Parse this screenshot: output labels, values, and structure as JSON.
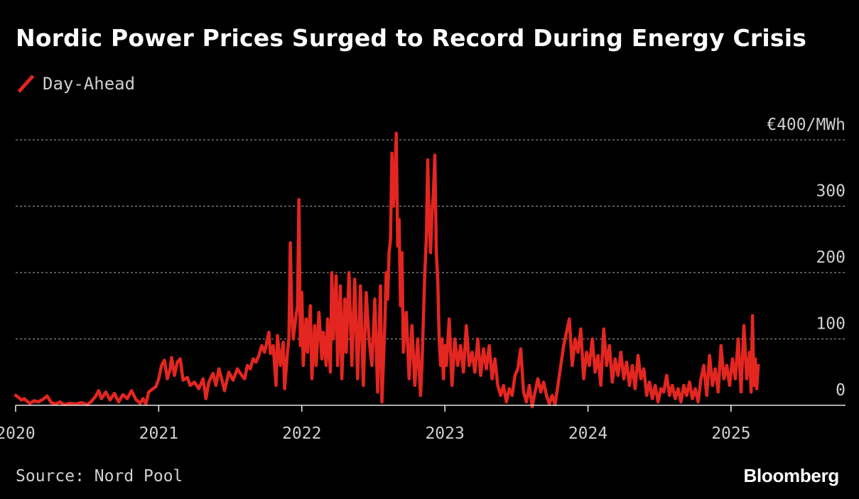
{
  "header": {
    "title": "Nordic Power Prices Surged to Record During Energy Crisis"
  },
  "legend": {
    "label": "Day-Ahead",
    "color": "#e32620"
  },
  "footer": {
    "source": "Source: Nord Pool",
    "brand": "Bloomberg"
  },
  "chart_data": {
    "type": "line",
    "title": "Nordic Power Prices Surged to Record During Energy Crisis",
    "xlabel": "",
    "ylabel": "€/MWh",
    "xlim": [
      2020.0,
      2025.8
    ],
    "ylim": [
      0,
      400
    ],
    "grid": true,
    "legend_position": "top-left",
    "y_ticks": [
      {
        "value": 0,
        "label": "0"
      },
      {
        "value": 100,
        "label": "100"
      },
      {
        "value": 200,
        "label": "200"
      },
      {
        "value": 300,
        "label": "300"
      },
      {
        "value": 400,
        "label": "€400/MWh"
      }
    ],
    "x_ticks": [
      {
        "value": 2020,
        "label": "2020"
      },
      {
        "value": 2021,
        "label": "2021"
      },
      {
        "value": 2022,
        "label": "2022"
      },
      {
        "value": 2023,
        "label": "2023"
      },
      {
        "value": 2024,
        "label": "2024"
      },
      {
        "value": 2025,
        "label": "2025"
      }
    ],
    "series": [
      {
        "name": "Day-Ahead",
        "color": "#e32620",
        "points": [
          [
            2020.0,
            15
          ],
          [
            2020.02,
            12
          ],
          [
            2020.04,
            8
          ],
          [
            2020.06,
            10
          ],
          [
            2020.08,
            6
          ],
          [
            2020.1,
            3
          ],
          [
            2020.13,
            7
          ],
          [
            2020.16,
            5
          ],
          [
            2020.19,
            9
          ],
          [
            2020.22,
            14
          ],
          [
            2020.25,
            4
          ],
          [
            2020.28,
            2
          ],
          [
            2020.31,
            5
          ],
          [
            2020.34,
            1
          ],
          [
            2020.38,
            3
          ],
          [
            2020.42,
            2
          ],
          [
            2020.46,
            4
          ],
          [
            2020.5,
            1
          ],
          [
            2020.53,
            6
          ],
          [
            2020.56,
            14
          ],
          [
            2020.58,
            22
          ],
          [
            2020.6,
            10
          ],
          [
            2020.63,
            20
          ],
          [
            2020.66,
            8
          ],
          [
            2020.69,
            18
          ],
          [
            2020.72,
            5
          ],
          [
            2020.75,
            16
          ],
          [
            2020.78,
            10
          ],
          [
            2020.81,
            22
          ],
          [
            2020.84,
            9
          ],
          [
            2020.87,
            3
          ],
          [
            2020.89,
            10
          ],
          [
            2020.91,
            2
          ],
          [
            2020.93,
            20
          ],
          [
            2020.96,
            25
          ],
          [
            2020.98,
            28
          ],
          [
            2021.0,
            40
          ],
          [
            2021.02,
            60
          ],
          [
            2021.04,
            68
          ],
          [
            2021.06,
            40
          ],
          [
            2021.08,
            55
          ],
          [
            2021.09,
            72
          ],
          [
            2021.11,
            45
          ],
          [
            2021.13,
            65
          ],
          [
            2021.15,
            70
          ],
          [
            2021.17,
            38
          ],
          [
            2021.2,
            42
          ],
          [
            2021.22,
            30
          ],
          [
            2021.25,
            35
          ],
          [
            2021.28,
            25
          ],
          [
            2021.31,
            40
          ],
          [
            2021.33,
            10
          ],
          [
            2021.35,
            35
          ],
          [
            2021.38,
            48
          ],
          [
            2021.4,
            30
          ],
          [
            2021.42,
            55
          ],
          [
            2021.44,
            40
          ],
          [
            2021.46,
            22
          ],
          [
            2021.49,
            50
          ],
          [
            2021.52,
            38
          ],
          [
            2021.55,
            55
          ],
          [
            2021.58,
            45
          ],
          [
            2021.6,
            40
          ],
          [
            2021.62,
            60
          ],
          [
            2021.64,
            55
          ],
          [
            2021.66,
            70
          ],
          [
            2021.68,
            65
          ],
          [
            2021.7,
            75
          ],
          [
            2021.72,
            90
          ],
          [
            2021.74,
            80
          ],
          [
            2021.76,
            100
          ],
          [
            2021.77,
            110
          ],
          [
            2021.78,
            78
          ],
          [
            2021.8,
            90
          ],
          [
            2021.82,
            30
          ],
          [
            2021.83,
            105
          ],
          [
            2021.85,
            60
          ],
          [
            2021.87,
            95
          ],
          [
            2021.88,
            25
          ],
          [
            2021.9,
            80
          ],
          [
            2021.91,
            100
          ],
          [
            2021.92,
            245
          ],
          [
            2021.93,
            140
          ],
          [
            2021.94,
            100
          ],
          [
            2021.96,
            135
          ],
          [
            2021.97,
            150
          ],
          [
            2021.98,
            310
          ],
          [
            2021.99,
            90
          ],
          [
            2022.0,
            170
          ],
          [
            2022.01,
            60
          ],
          [
            2022.03,
            130
          ],
          [
            2022.04,
            80
          ],
          [
            2022.06,
            150
          ],
          [
            2022.07,
            40
          ],
          [
            2022.09,
            120
          ],
          [
            2022.1,
            60
          ],
          [
            2022.12,
            140
          ],
          [
            2022.14,
            70
          ],
          [
            2022.15,
            110
          ],
          [
            2022.17,
            60
          ],
          [
            2022.18,
            130
          ],
          [
            2022.2,
            50
          ],
          [
            2022.21,
            200
          ],
          [
            2022.22,
            100
          ],
          [
            2022.24,
            195
          ],
          [
            2022.25,
            60
          ],
          [
            2022.27,
            180
          ],
          [
            2022.28,
            40
          ],
          [
            2022.3,
            160
          ],
          [
            2022.31,
            80
          ],
          [
            2022.33,
            200
          ],
          [
            2022.35,
            60
          ],
          [
            2022.37,
            190
          ],
          [
            2022.39,
            40
          ],
          [
            2022.41,
            180
          ],
          [
            2022.43,
            30
          ],
          [
            2022.45,
            170
          ],
          [
            2022.47,
            100
          ],
          [
            2022.49,
            60
          ],
          [
            2022.51,
            160
          ],
          [
            2022.53,
            20
          ],
          [
            2022.55,
            180
          ],
          [
            2022.56,
            5
          ],
          [
            2022.58,
            120
          ],
          [
            2022.59,
            200
          ],
          [
            2022.6,
            160
          ],
          [
            2022.61,
            230
          ],
          [
            2022.62,
            250
          ],
          [
            2022.63,
            380
          ],
          [
            2022.64,
            300
          ],
          [
            2022.65,
            340
          ],
          [
            2022.66,
            410
          ],
          [
            2022.67,
            240
          ],
          [
            2022.68,
            280
          ],
          [
            2022.69,
            150
          ],
          [
            2022.7,
            230
          ],
          [
            2022.71,
            80
          ],
          [
            2022.73,
            140
          ],
          [
            2022.75,
            40
          ],
          [
            2022.77,
            120
          ],
          [
            2022.79,
            30
          ],
          [
            2022.81,
            100
          ],
          [
            2022.83,
            15
          ],
          [
            2022.84,
            60
          ],
          [
            2022.86,
            200
          ],
          [
            2022.87,
            250
          ],
          [
            2022.88,
            370
          ],
          [
            2022.89,
            280
          ],
          [
            2022.9,
            230
          ],
          [
            2022.91,
            290
          ],
          [
            2022.92,
            320
          ],
          [
            2022.93,
            377
          ],
          [
            2022.94,
            230
          ],
          [
            2022.95,
            190
          ],
          [
            2022.96,
            100
          ],
          [
            2022.97,
            60
          ],
          [
            2022.98,
            100
          ],
          [
            2022.99,
            40
          ],
          [
            2023.0,
            90
          ],
          [
            2023.01,
            60
          ],
          [
            2023.03,
            130
          ],
          [
            2023.05,
            30
          ],
          [
            2023.07,
            100
          ],
          [
            2023.09,
            60
          ],
          [
            2023.11,
            90
          ],
          [
            2023.13,
            50
          ],
          [
            2023.15,
            120
          ],
          [
            2023.17,
            60
          ],
          [
            2023.19,
            80
          ],
          [
            2023.21,
            50
          ],
          [
            2023.23,
            100
          ],
          [
            2023.25,
            45
          ],
          [
            2023.27,
            85
          ],
          [
            2023.29,
            55
          ],
          [
            2023.31,
            90
          ],
          [
            2023.33,
            40
          ],
          [
            2023.35,
            70
          ],
          [
            2023.37,
            30
          ],
          [
            2023.39,
            15
          ],
          [
            2023.41,
            30
          ],
          [
            2023.43,
            5
          ],
          [
            2023.45,
            25
          ],
          [
            2023.47,
            15
          ],
          [
            2023.49,
            45
          ],
          [
            2023.51,
            55
          ],
          [
            2023.53,
            85
          ],
          [
            2023.55,
            20
          ],
          [
            2023.57,
            5
          ],
          [
            2023.59,
            30
          ],
          [
            2023.61,
            -2
          ],
          [
            2023.63,
            20
          ],
          [
            2023.65,
            40
          ],
          [
            2023.67,
            20
          ],
          [
            2023.69,
            35
          ],
          [
            2023.71,
            15
          ],
          [
            2023.73,
            2
          ],
          [
            2023.75,
            15
          ],
          [
            2023.77,
            1
          ],
          [
            2023.79,
            30
          ],
          [
            2023.81,
            60
          ],
          [
            2023.83,
            90
          ],
          [
            2023.85,
            110
          ],
          [
            2023.87,
            130
          ],
          [
            2023.89,
            60
          ],
          [
            2023.91,
            100
          ],
          [
            2023.93,
            80
          ],
          [
            2023.95,
            115
          ],
          [
            2023.97,
            40
          ],
          [
            2023.99,
            80
          ],
          [
            2024.01,
            60
          ],
          [
            2024.03,
            100
          ],
          [
            2024.05,
            50
          ],
          [
            2024.07,
            75
          ],
          [
            2024.09,
            30
          ],
          [
            2024.11,
            115
          ],
          [
            2024.13,
            60
          ],
          [
            2024.15,
            90
          ],
          [
            2024.17,
            35
          ],
          [
            2024.19,
            70
          ],
          [
            2024.21,
            45
          ],
          [
            2024.23,
            80
          ],
          [
            2024.25,
            40
          ],
          [
            2024.27,
            65
          ],
          [
            2024.29,
            30
          ],
          [
            2024.31,
            60
          ],
          [
            2024.33,
            25
          ],
          [
            2024.35,
            75
          ],
          [
            2024.37,
            40
          ],
          [
            2024.39,
            55
          ],
          [
            2024.41,
            15
          ],
          [
            2024.43,
            35
          ],
          [
            2024.45,
            10
          ],
          [
            2024.47,
            30
          ],
          [
            2024.49,
            5
          ],
          [
            2024.51,
            25
          ],
          [
            2024.53,
            20
          ],
          [
            2024.55,
            45
          ],
          [
            2024.57,
            15
          ],
          [
            2024.59,
            30
          ],
          [
            2024.61,
            10
          ],
          [
            2024.63,
            25
          ],
          [
            2024.65,
            5
          ],
          [
            2024.67,
            30
          ],
          [
            2024.69,
            15
          ],
          [
            2024.71,
            35
          ],
          [
            2024.73,
            10
          ],
          [
            2024.75,
            25
          ],
          [
            2024.77,
            5
          ],
          [
            2024.79,
            40
          ],
          [
            2024.81,
            60
          ],
          [
            2024.83,
            15
          ],
          [
            2024.85,
            75
          ],
          [
            2024.87,
            30
          ],
          [
            2024.89,
            55
          ],
          [
            2024.91,
            20
          ],
          [
            2024.93,
            90
          ],
          [
            2024.95,
            40
          ],
          [
            2024.97,
            60
          ],
          [
            2024.99,
            30
          ],
          [
            2025.01,
            70
          ],
          [
            2025.03,
            40
          ],
          [
            2025.05,
            100
          ],
          [
            2025.07,
            20
          ],
          [
            2025.09,
            120
          ],
          [
            2025.11,
            40
          ],
          [
            2025.13,
            80
          ],
          [
            2025.14,
            20
          ],
          [
            2025.15,
            135
          ],
          [
            2025.16,
            30
          ],
          [
            2025.17,
            70
          ],
          [
            2025.18,
            25
          ],
          [
            2025.19,
            60
          ]
        ]
      }
    ]
  }
}
